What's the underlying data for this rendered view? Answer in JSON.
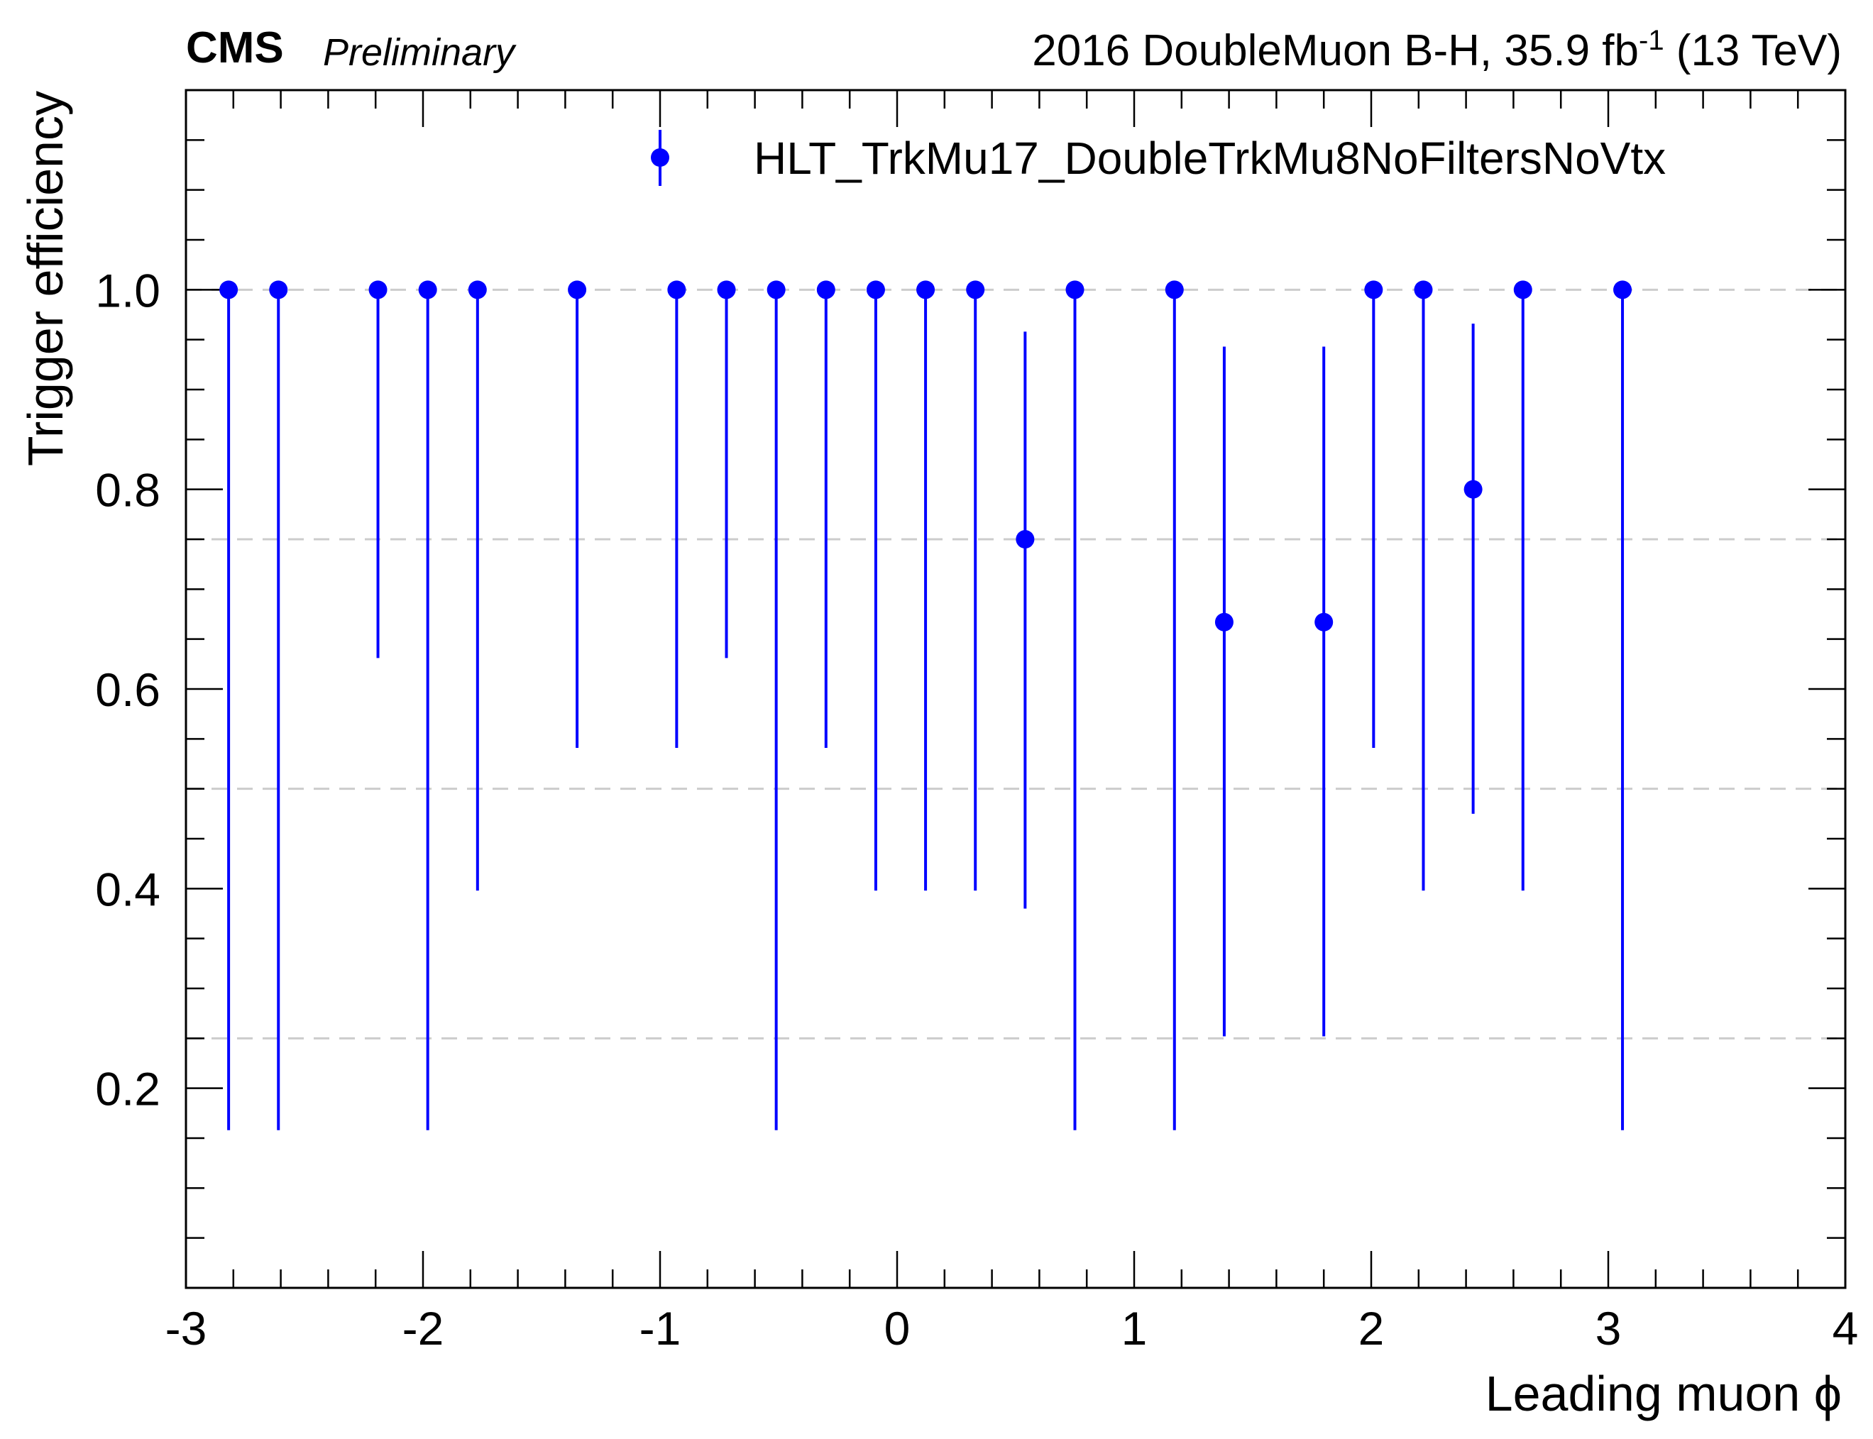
{
  "header": {
    "experiment": "CMS",
    "status": "Preliminary",
    "lumi_main": "2016 DoubleMuon B-H, 35.9 fb",
    "lumi_exp": "-1",
    "lumi_tail": " (13 TeV)"
  },
  "chart_data": {
    "type": "scatter",
    "xlabel": "Leading muon ϕ",
    "ylabel": "Trigger efficiency",
    "xlim": [
      -3,
      4
    ],
    "ylim": [
      0,
      1.2
    ],
    "xticks": [
      "-3",
      "-2",
      "-1",
      "0",
      "1",
      "2",
      "3",
      "4"
    ],
    "yticks": [
      "0.2",
      "0.4",
      "0.6",
      "0.8",
      "1.0"
    ],
    "grid_lines_y": [
      0.25,
      0.5,
      0.75,
      1.0
    ],
    "legend_position": "top-right",
    "color": "#0000ff",
    "series": [
      {
        "name": "HLT_TrkMu17_DoubleTrkMu8NoFiltersNoVtx",
        "x": [
          -2.82,
          -2.61,
          -2.19,
          -1.98,
          -1.77,
          -1.35,
          -0.93,
          -0.72,
          -0.51,
          -0.3,
          -0.09,
          0.12,
          0.33,
          0.54,
          0.75,
          1.17,
          1.38,
          1.8,
          2.01,
          2.22,
          2.43,
          2.64,
          3.06
        ],
        "y": [
          1.0,
          1.0,
          1.0,
          1.0,
          1.0,
          1.0,
          1.0,
          1.0,
          1.0,
          1.0,
          1.0,
          1.0,
          1.0,
          0.75,
          1.0,
          1.0,
          0.667,
          0.667,
          1.0,
          1.0,
          0.8,
          1.0,
          1.0
        ],
        "y_low": [
          0.158,
          0.158,
          0.631,
          0.158,
          0.398,
          0.541,
          0.541,
          0.631,
          0.158,
          0.541,
          0.398,
          0.398,
          0.398,
          0.38,
          0.158,
          0.158,
          0.252,
          0.252,
          0.541,
          0.398,
          0.475,
          0.398,
          0.158
        ],
        "y_high": [
          1.0,
          1.0,
          1.0,
          1.0,
          1.0,
          1.0,
          1.0,
          1.0,
          1.0,
          1.0,
          1.0,
          1.0,
          1.0,
          0.958,
          1.0,
          1.0,
          0.943,
          0.943,
          1.0,
          1.0,
          0.966,
          1.0,
          1.0
        ]
      }
    ]
  }
}
